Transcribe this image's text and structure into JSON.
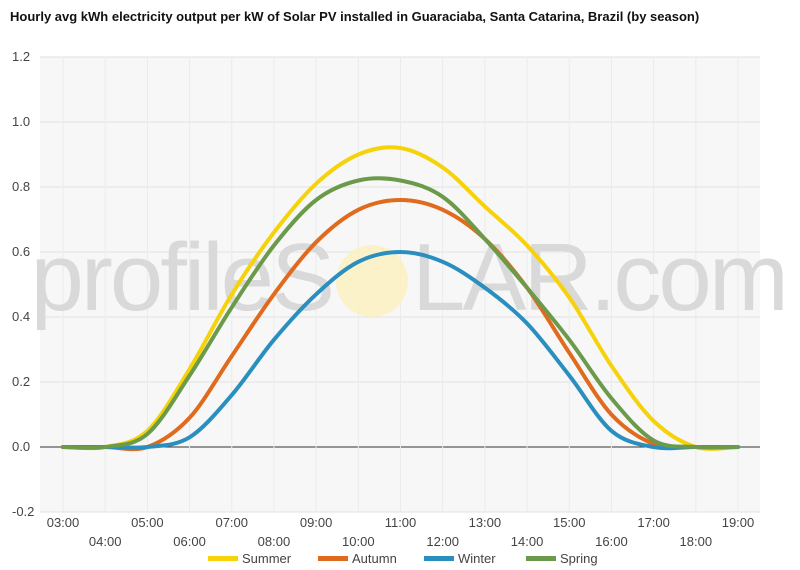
{
  "chart_data": {
    "type": "line",
    "title": "Hourly avg kWh electricity output per kW of Solar PV installed in Guaraciaba, Santa Catarina, Brazil (by season)",
    "xlabel": "",
    "ylabel": "",
    "ylim": [
      -0.2,
      1.2
    ],
    "yticks": [
      "-0.2",
      "0.0",
      "0.2",
      "0.4",
      "0.6",
      "0.8",
      "1.0",
      "1.2"
    ],
    "categories": [
      "03:00",
      "04:00",
      "05:00",
      "06:00",
      "07:00",
      "08:00",
      "09:00",
      "10:00",
      "11:00",
      "12:00",
      "13:00",
      "14:00",
      "15:00",
      "16:00",
      "17:00",
      "18:00",
      "19:00"
    ],
    "grid": true,
    "legend_position": "bottom",
    "series": [
      {
        "name": "Summer",
        "color": "#f5d20a",
        "values": [
          0.0,
          0.0,
          0.05,
          0.24,
          0.47,
          0.66,
          0.81,
          0.9,
          0.92,
          0.86,
          0.74,
          0.62,
          0.46,
          0.25,
          0.08,
          0.0,
          0.0
        ]
      },
      {
        "name": "Autumn",
        "color": "#e06b1f",
        "values": [
          0.0,
          0.0,
          0.0,
          0.09,
          0.28,
          0.47,
          0.63,
          0.73,
          0.76,
          0.73,
          0.64,
          0.49,
          0.29,
          0.1,
          0.01,
          0.0,
          0.0
        ]
      },
      {
        "name": "Winter",
        "color": "#2a8fbf",
        "values": [
          0.0,
          0.0,
          0.0,
          0.03,
          0.16,
          0.33,
          0.47,
          0.57,
          0.6,
          0.57,
          0.49,
          0.38,
          0.22,
          0.05,
          0.0,
          0.0,
          0.0
        ]
      },
      {
        "name": "Spring",
        "color": "#6b9a4a",
        "values": [
          0.0,
          0.0,
          0.04,
          0.22,
          0.43,
          0.62,
          0.76,
          0.82,
          0.82,
          0.77,
          0.64,
          0.49,
          0.33,
          0.15,
          0.02,
          0.0,
          0.0
        ]
      }
    ]
  },
  "watermark": {
    "left": "profileS",
    "right": "LAR.com"
  }
}
